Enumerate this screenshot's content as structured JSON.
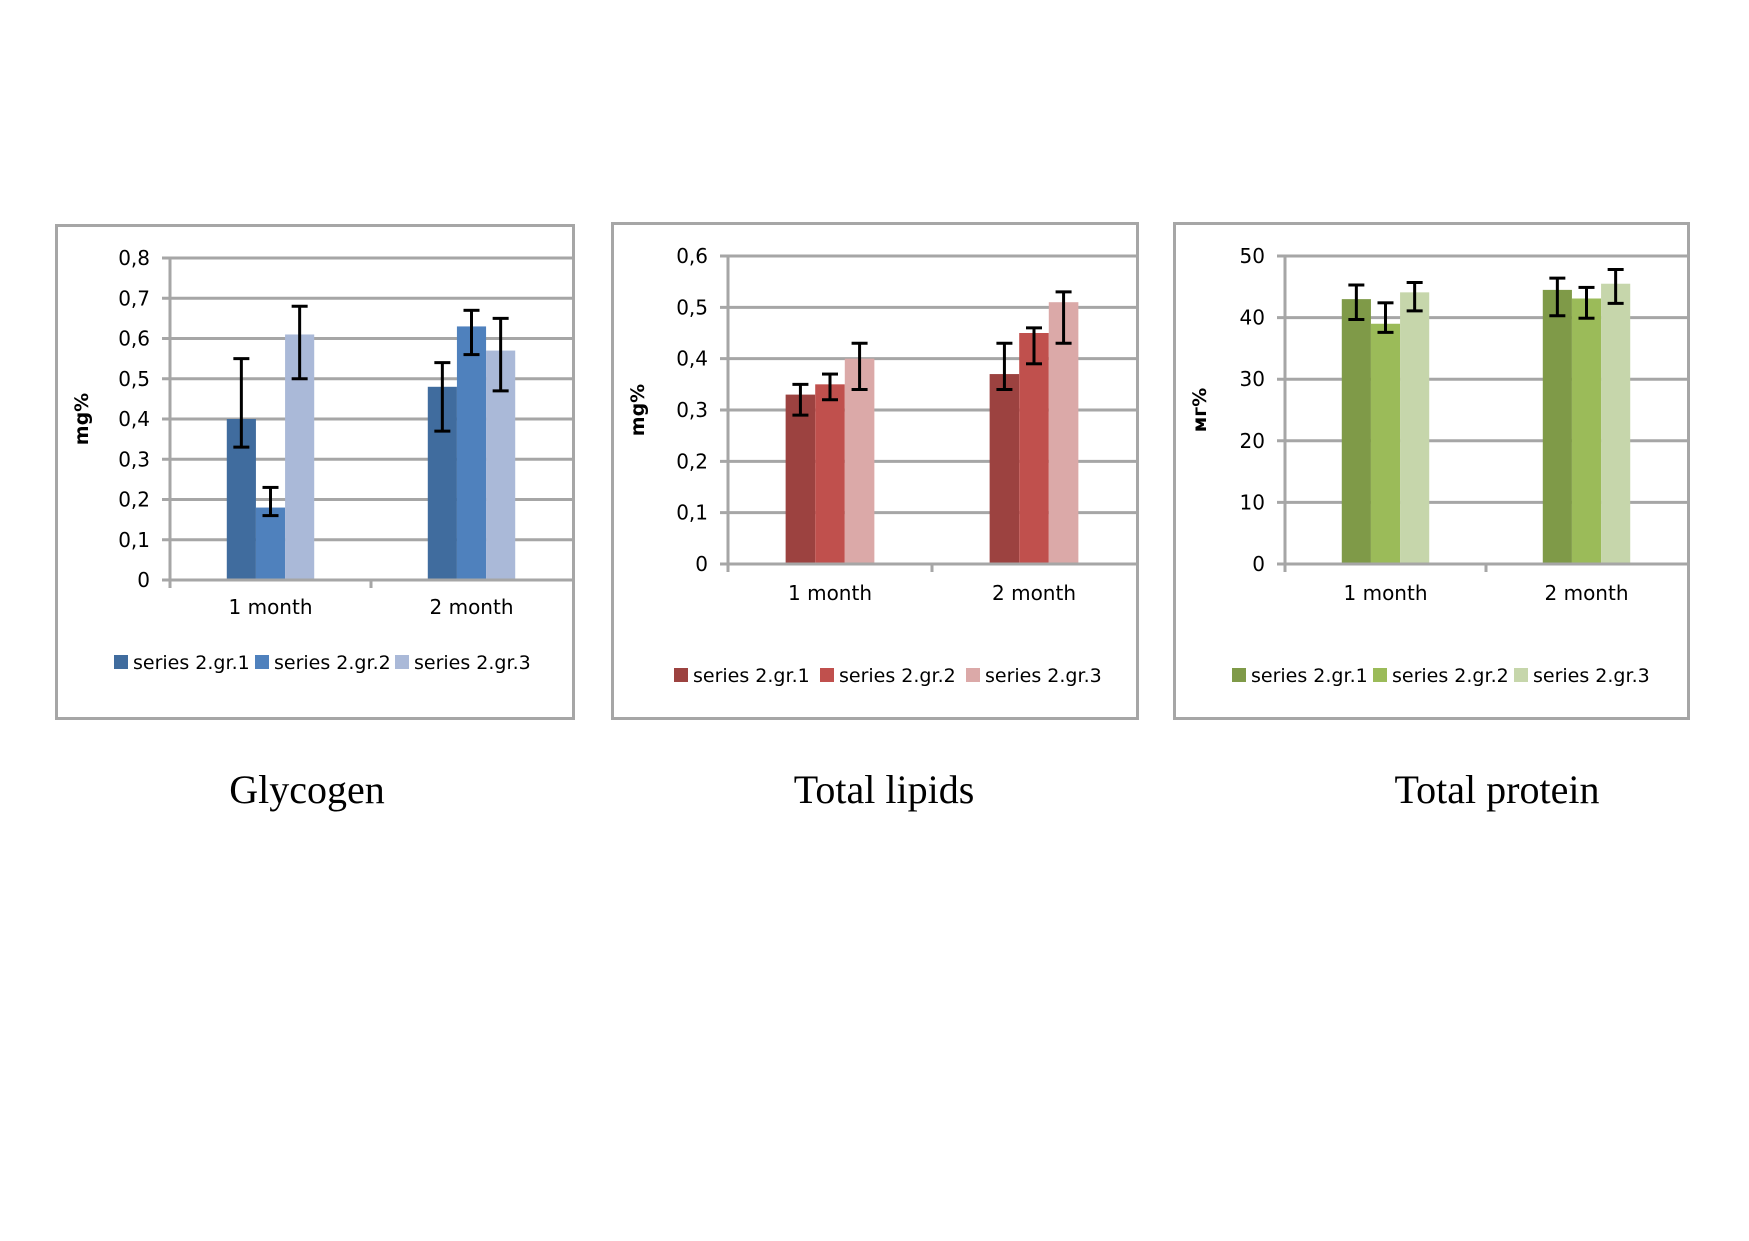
{
  "chart_data": [
    {
      "type": "bar",
      "title": "Glycogen",
      "xlabel": "",
      "ylabel": "mg%",
      "ylim": [
        0,
        0.8
      ],
      "yticks": [
        "0",
        "0,1",
        "0,2",
        "0,3",
        "0,4",
        "0,5",
        "0,6",
        "0,7",
        "0,8"
      ],
      "ytick_values": [
        0,
        0.1,
        0.2,
        0.3,
        0.4,
        0.5,
        0.6,
        0.7,
        0.8
      ],
      "grid": true,
      "legend_position": "bottom",
      "categories": [
        "1 month",
        "2 month"
      ],
      "series": [
        {
          "name": "series 2.gr.1",
          "color": "#406c9e",
          "values": [
            0.4,
            0.48
          ],
          "err_low": [
            0.33,
            0.37
          ],
          "err_high": [
            0.55,
            0.54
          ]
        },
        {
          "name": "series 2.gr.2",
          "color": "#4f81bd",
          "values": [
            0.18,
            0.63
          ],
          "err_low": [
            0.16,
            0.56
          ],
          "err_high": [
            0.23,
            0.67
          ]
        },
        {
          "name": "series 2.gr.3",
          "color": "#aab9d8",
          "values": [
            0.61,
            0.57
          ],
          "err_low": [
            0.5,
            0.47
          ],
          "err_high": [
            0.68,
            0.65
          ]
        }
      ]
    },
    {
      "type": "bar",
      "title": "Total lipids",
      "xlabel": "",
      "ylabel": "mg%",
      "ylim": [
        0,
        0.6
      ],
      "yticks": [
        "0",
        "0,1",
        "0,2",
        "0,3",
        "0,4",
        "0,5",
        "0,6"
      ],
      "ytick_values": [
        0,
        0.1,
        0.2,
        0.3,
        0.4,
        0.5,
        0.6
      ],
      "grid": true,
      "legend_position": "bottom",
      "categories": [
        "1 month",
        "2 month"
      ],
      "series": [
        {
          "name": "series 2.gr.1",
          "color": "#9c4240",
          "values": [
            0.33,
            0.37
          ],
          "err_low": [
            0.29,
            0.34
          ],
          "err_high": [
            0.35,
            0.43
          ]
        },
        {
          "name": "series 2.gr.2",
          "color": "#c0504d",
          "values": [
            0.35,
            0.45
          ],
          "err_low": [
            0.32,
            0.39
          ],
          "err_high": [
            0.37,
            0.46
          ]
        },
        {
          "name": "series 2.gr.3",
          "color": "#dba9a8",
          "values": [
            0.4,
            0.51
          ],
          "err_low": [
            0.34,
            0.43
          ],
          "err_high": [
            0.43,
            0.53
          ]
        }
      ]
    },
    {
      "type": "bar",
      "title": "Total protein",
      "xlabel": "",
      "ylabel": "мг%",
      "ylim": [
        0,
        50
      ],
      "yticks": [
        "0",
        "10",
        "20",
        "30",
        "40",
        "50"
      ],
      "ytick_values": [
        0,
        10,
        20,
        30,
        40,
        50
      ],
      "grid": true,
      "legend_position": "bottom",
      "categories": [
        "1 month",
        "2 month"
      ],
      "series": [
        {
          "name": "series 2.gr.1",
          "color": "#7f9a48",
          "values": [
            43.0,
            44.5
          ],
          "err_low": [
            39.7,
            40.3
          ],
          "err_high": [
            45.3,
            46.4
          ]
        },
        {
          "name": "series 2.gr.2",
          "color": "#9bbb59",
          "values": [
            39.0,
            43.1
          ],
          "err_low": [
            37.6,
            39.9
          ],
          "err_high": [
            42.4,
            44.9
          ]
        },
        {
          "name": "series 2.gr.3",
          "color": "#c6d6ab",
          "values": [
            44.1,
            45.5
          ],
          "err_low": [
            41.1,
            42.3
          ],
          "err_high": [
            45.7,
            47.8
          ]
        }
      ]
    }
  ]
}
